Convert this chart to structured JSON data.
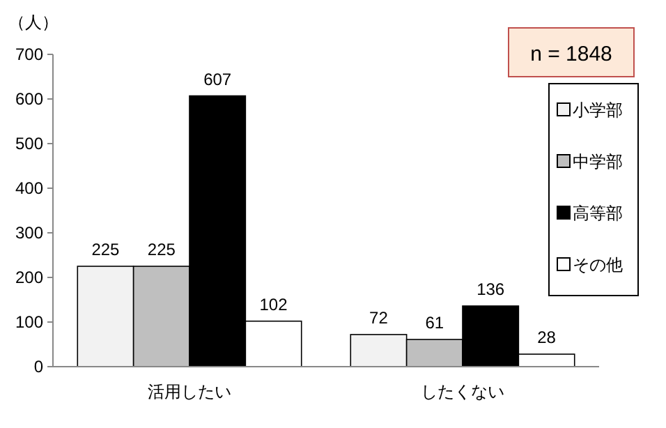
{
  "chart_data": {
    "type": "bar",
    "ylabel": "（人）",
    "categories": [
      "活用したい",
      "したくない"
    ],
    "series": [
      {
        "name": "小学部",
        "color": "#f2f2f2",
        "values": [
          225,
          72
        ]
      },
      {
        "name": "中学部",
        "color": "#bfbfbf",
        "values": [
          225,
          61
        ]
      },
      {
        "name": "高等部",
        "color": "#000000",
        "values": [
          607,
          136
        ]
      },
      {
        "name": "その他",
        "color": "#ffffff",
        "values": [
          102,
          28
        ]
      }
    ],
    "ylim": [
      0,
      700
    ],
    "yticks": [
      0,
      100,
      200,
      300,
      400,
      500,
      600,
      700
    ],
    "data_labels": true,
    "legend": "right",
    "grid": false,
    "annotations": [
      "n = 1848"
    ]
  }
}
